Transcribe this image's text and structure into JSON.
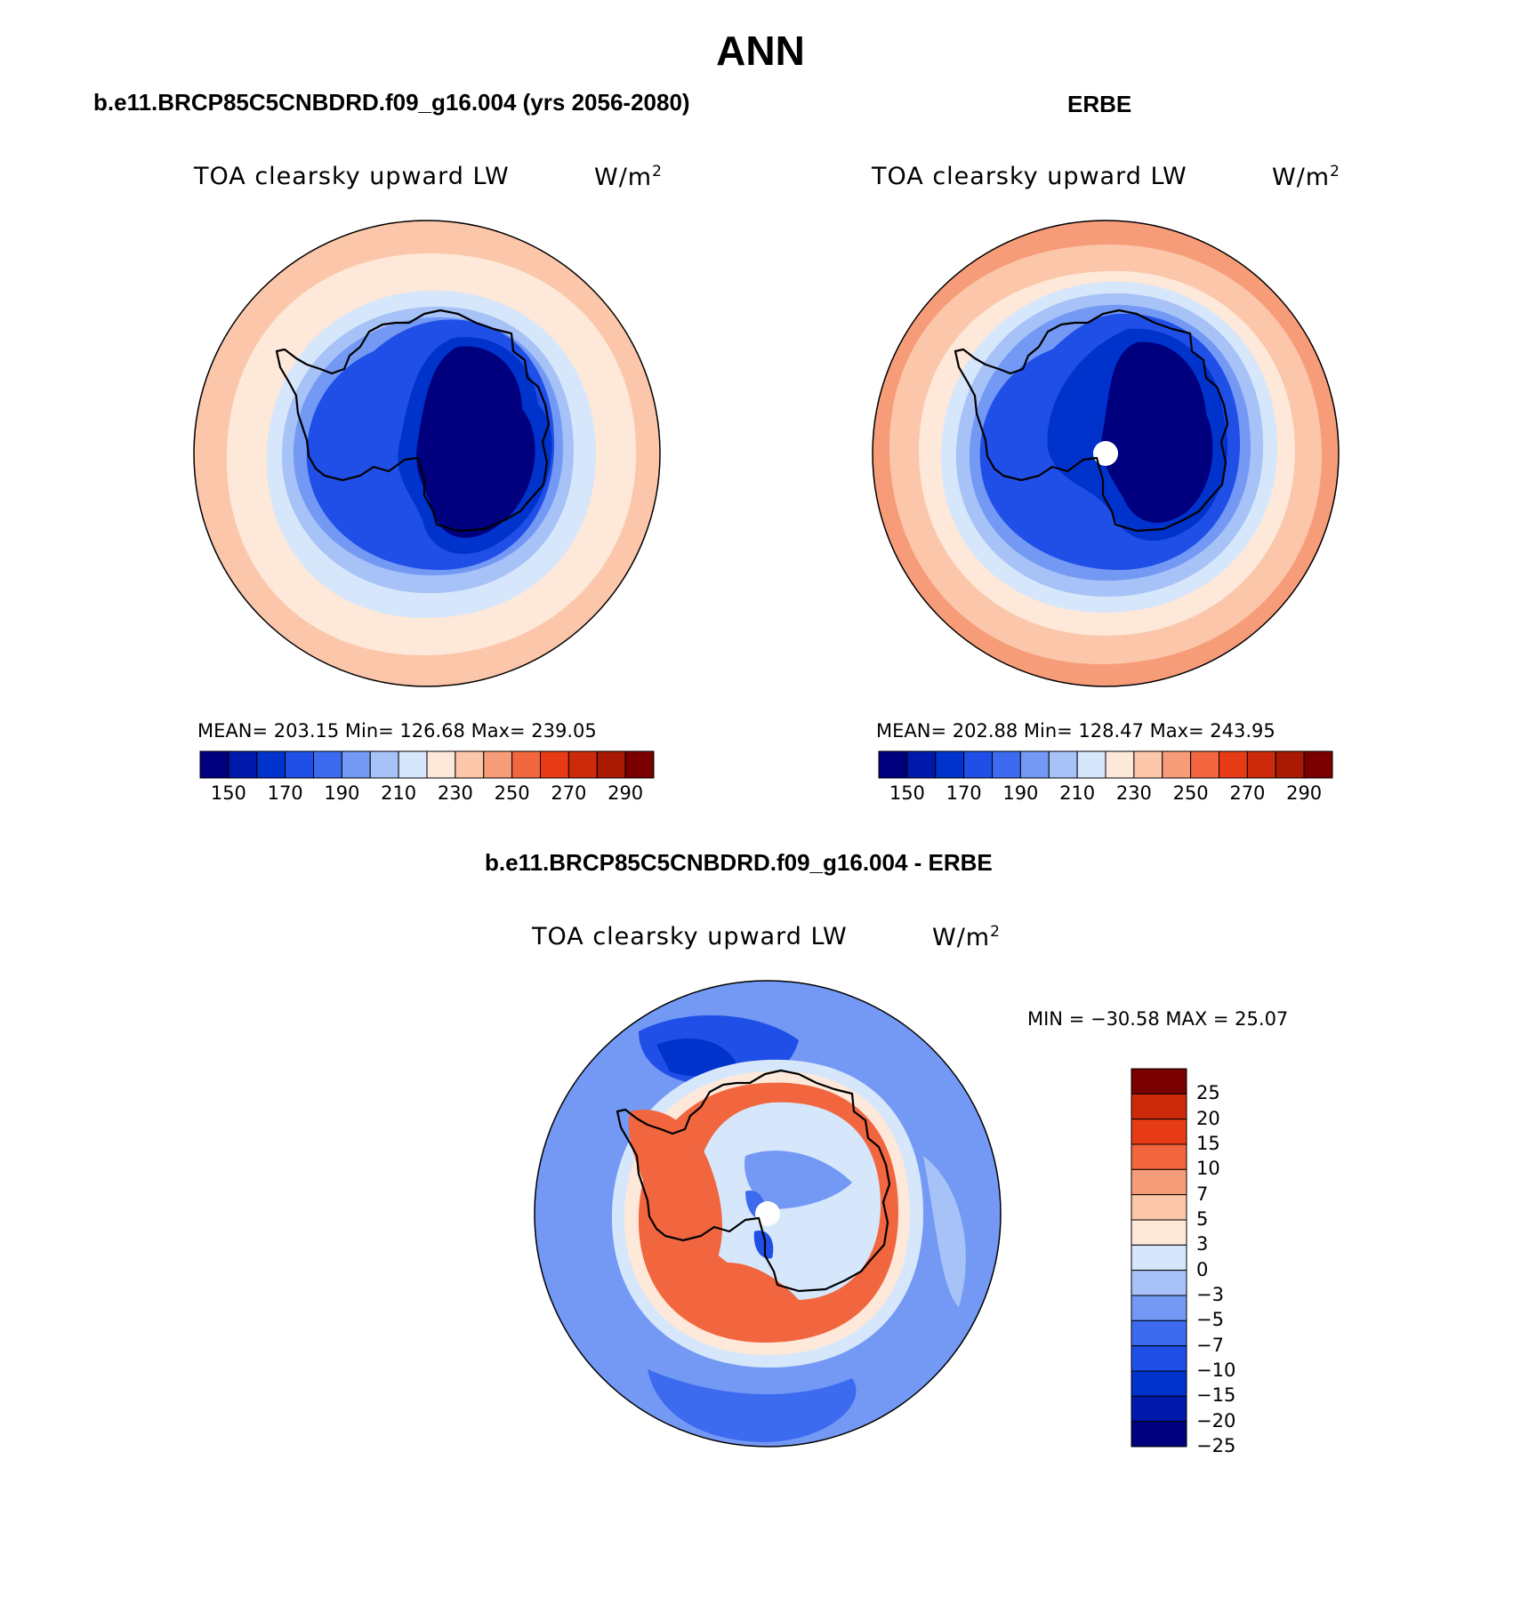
{
  "figure": {
    "title": "ANN",
    "colors": {
      "abs_scale": [
        "#00007f",
        "#0019aa",
        "#0033cc",
        "#1f4fe6",
        "#3d6bf0",
        "#7399f5",
        "#a6c2f7",
        "#d6e6fb",
        "#fde8d9",
        "#fbc6a9",
        "#f79c79",
        "#f1663f",
        "#e63b15",
        "#cc2a0a",
        "#a81a03",
        "#7a0000"
      ],
      "diff_scale": [
        "#00007f",
        "#0019aa",
        "#0033cc",
        "#1f4fe6",
        "#3d6bf0",
        "#7399f5",
        "#a6c2f7",
        "#d6e6fb",
        "#fde8d9",
        "#fbc6a9",
        "#f79c79",
        "#f1663f",
        "#e63b15",
        "#cc2a0a",
        "#7a0000"
      ],
      "land_outline": "#000000"
    }
  },
  "panels": {
    "model": {
      "title": "b.e11.BRCP85C5CNBDRD.f09_g16.004 (yrs 2056-2080)",
      "label": "TOA clearsky upward LW",
      "units": "W/m",
      "units_sup": "2",
      "stats": "MEAN= 203.15   Min= 126.68   Max= 239.05",
      "colorbar_ticks": [
        "150",
        "170",
        "190",
        "210",
        "230",
        "250",
        "270",
        "290"
      ]
    },
    "obs": {
      "title": "ERBE",
      "label": "TOA clearsky upward LW",
      "units": "W/m",
      "units_sup": "2",
      "stats": "MEAN= 202.88   Min= 128.47   Max= 243.95",
      "colorbar_ticks": [
        "150",
        "170",
        "190",
        "210",
        "230",
        "250",
        "270",
        "290"
      ]
    },
    "diff": {
      "title": "b.e11.BRCP85C5CNBDRD.f09_g16.004 - ERBE",
      "label": "TOA clearsky upward LW",
      "units": "W/m",
      "units_sup": "2",
      "minmax": "MIN = −30.58 MAX =   25.07",
      "colorbar_ticks": [
        "25",
        "20",
        "15",
        "10",
        "7",
        "5",
        "3",
        "0",
        "−3",
        "−5",
        "−7",
        "−10",
        "−15",
        "−20",
        "−25"
      ]
    }
  }
}
